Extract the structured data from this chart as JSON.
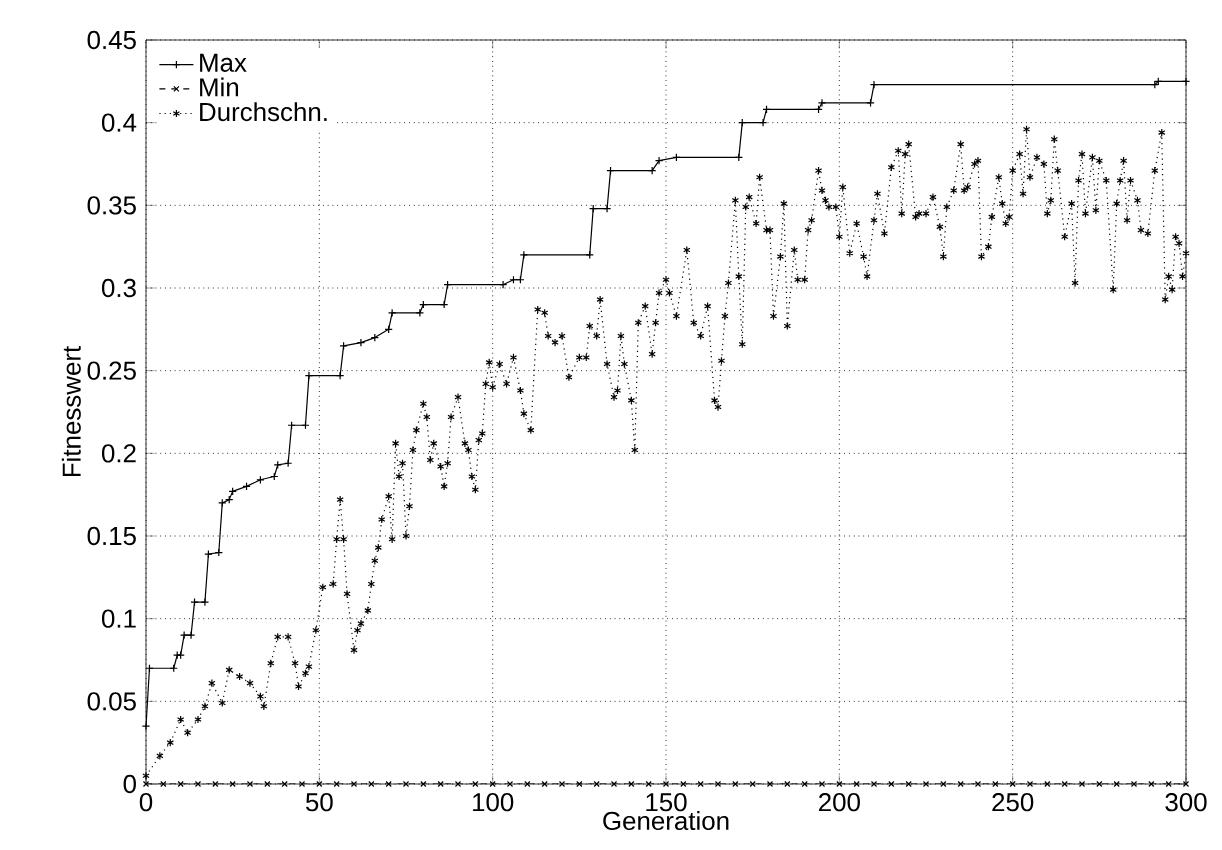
{
  "chart_data": {
    "type": "line",
    "xlabel": "Generation",
    "ylabel": "Fitnesswert",
    "xlim": [
      0,
      300
    ],
    "ylim": [
      0,
      0.45
    ],
    "xticks": [
      0,
      50,
      100,
      150,
      200,
      250,
      300
    ],
    "yticks": [
      0,
      0.05,
      0.1,
      0.15,
      0.2,
      0.25,
      0.3,
      0.35,
      0.4,
      0.45
    ],
    "grid": true,
    "legend": "top left",
    "series": [
      {
        "name": "Max",
        "color": "#000000",
        "marker": "cross",
        "line_style": "solid",
        "x": [
          0,
          1,
          8,
          9,
          10,
          11,
          13,
          14,
          17,
          18,
          21,
          22,
          24,
          25,
          29,
          33,
          37,
          38,
          41,
          42,
          46,
          47,
          56,
          57,
          62,
          66,
          70,
          71,
          79,
          80,
          86,
          87,
          103,
          106,
          108,
          109,
          128,
          129,
          133,
          134,
          146,
          148,
          153,
          171,
          172,
          178,
          179,
          194,
          195,
          209,
          210,
          291,
          292,
          300
        ],
        "values": [
          0.035,
          0.07,
          0.07,
          0.078,
          0.078,
          0.09,
          0.09,
          0.11,
          0.11,
          0.139,
          0.14,
          0.17,
          0.172,
          0.177,
          0.18,
          0.184,
          0.186,
          0.193,
          0.194,
          0.217,
          0.217,
          0.247,
          0.247,
          0.265,
          0.267,
          0.27,
          0.275,
          0.285,
          0.285,
          0.29,
          0.29,
          0.302,
          0.302,
          0.305,
          0.305,
          0.32,
          0.32,
          0.348,
          0.348,
          0.371,
          0.371,
          0.377,
          0.379,
          0.379,
          0.4,
          0.4,
          0.408,
          0.408,
          0.412,
          0.412,
          0.423,
          0.423,
          0.425,
          0.425
        ]
      },
      {
        "name": "Min",
        "color": "#000000",
        "marker": "cross",
        "line_style": "dashed",
        "x": [
          0,
          5,
          10,
          15,
          20,
          25,
          30,
          35,
          40,
          45,
          50,
          55,
          60,
          65,
          70,
          75,
          80,
          85,
          90,
          95,
          100,
          105,
          110,
          115,
          120,
          125,
          130,
          135,
          140,
          145,
          150,
          155,
          160,
          165,
          170,
          175,
          180,
          185,
          190,
          195,
          200,
          205,
          210,
          215,
          220,
          225,
          230,
          235,
          240,
          245,
          250,
          255,
          260,
          265,
          270,
          275,
          280,
          285,
          290,
          295,
          300
        ],
        "values": [
          0,
          0,
          0,
          0,
          0,
          0,
          0,
          0,
          0,
          0,
          0,
          0,
          0,
          0,
          0,
          0,
          0,
          0,
          0,
          0,
          0,
          0,
          0,
          0,
          0,
          0,
          0,
          0,
          0,
          0,
          0,
          0,
          0,
          0,
          0,
          0,
          0,
          0,
          0,
          0,
          0,
          0,
          0,
          0,
          0,
          0,
          0,
          0,
          0,
          0,
          0,
          0,
          0,
          0,
          0,
          0,
          0,
          0,
          0,
          0,
          0
        ]
      },
      {
        "name": "Durchschn.",
        "color": "#000000",
        "marker": "cross",
        "line_style": "dotted",
        "x": [
          0,
          4,
          7,
          10,
          12,
          15,
          17,
          19,
          22,
          24,
          27,
          30,
          33,
          34,
          36,
          38,
          41,
          43,
          44,
          46,
          47,
          49,
          51,
          54,
          55,
          56,
          57,
          58,
          60,
          61,
          62,
          64,
          65,
          66,
          67,
          68,
          70,
          71,
          72,
          73,
          74,
          75,
          76,
          77,
          78,
          80,
          81,
          82,
          83,
          85,
          86,
          87,
          88,
          90,
          92,
          93,
          94,
          95,
          96,
          97,
          98,
          99,
          100,
          102,
          104,
          106,
          108,
          109,
          111,
          113,
          115,
          116,
          118,
          120,
          122,
          125,
          127,
          128,
          130,
          131,
          133,
          135,
          136,
          137,
          138,
          140,
          141,
          142,
          144,
          146,
          147,
          148,
          150,
          151,
          153,
          156,
          158,
          160,
          162,
          164,
          165,
          166,
          167,
          168,
          170,
          171,
          172,
          173,
          174,
          176,
          177,
          179,
          180,
          181,
          183,
          184,
          185,
          187,
          188,
          190,
          191,
          192,
          194,
          195,
          196,
          197,
          199,
          200,
          201,
          203,
          205,
          207,
          208,
          210,
          211,
          213,
          215,
          217,
          218,
          219,
          220,
          222,
          223,
          225,
          227,
          229,
          230,
          231,
          233,
          235,
          236,
          237,
          239,
          240,
          241,
          243,
          244,
          246,
          247,
          248,
          249,
          250,
          252,
          253,
          254,
          255,
          257,
          259,
          260,
          261,
          262,
          263,
          265,
          267,
          268,
          269,
          270,
          271,
          273,
          274,
          275,
          277,
          279,
          280,
          281,
          282,
          283,
          284,
          286,
          287,
          289,
          291,
          293,
          294,
          295,
          296,
          297,
          298,
          299,
          300
        ],
        "values": [
          0.005,
          0.017,
          0.025,
          0.039,
          0.031,
          0.039,
          0.047,
          0.061,
          0.049,
          0.069,
          0.065,
          0.061,
          0.053,
          0.047,
          0.073,
          0.089,
          0.089,
          0.073,
          0.059,
          0.067,
          0.071,
          0.093,
          0.119,
          0.121,
          0.148,
          0.172,
          0.148,
          0.115,
          0.081,
          0.093,
          0.097,
          0.105,
          0.121,
          0.135,
          0.143,
          0.16,
          0.174,
          0.148,
          0.206,
          0.186,
          0.194,
          0.15,
          0.168,
          0.202,
          0.214,
          0.23,
          0.222,
          0.196,
          0.206,
          0.192,
          0.18,
          0.194,
          0.222,
          0.234,
          0.206,
          0.202,
          0.186,
          0.178,
          0.208,
          0.212,
          0.242,
          0.255,
          0.24,
          0.254,
          0.242,
          0.258,
          0.238,
          0.224,
          0.214,
          0.287,
          0.285,
          0.271,
          0.267,
          0.271,
          0.246,
          0.258,
          0.258,
          0.277,
          0.271,
          0.293,
          0.254,
          0.234,
          0.238,
          0.271,
          0.254,
          0.232,
          0.202,
          0.279,
          0.289,
          0.26,
          0.279,
          0.297,
          0.305,
          0.297,
          0.283,
          0.323,
          0.279,
          0.271,
          0.289,
          0.232,
          0.228,
          0.256,
          0.283,
          0.303,
          0.353,
          0.307,
          0.266,
          0.349,
          0.355,
          0.339,
          0.367,
          0.335,
          0.335,
          0.283,
          0.319,
          0.351,
          0.277,
          0.323,
          0.305,
          0.305,
          0.335,
          0.341,
          0.371,
          0.359,
          0.353,
          0.349,
          0.349,
          0.331,
          0.361,
          0.321,
          0.339,
          0.319,
          0.307,
          0.341,
          0.357,
          0.333,
          0.373,
          0.383,
          0.345,
          0.381,
          0.387,
          0.343,
          0.345,
          0.345,
          0.355,
          0.337,
          0.319,
          0.349,
          0.359,
          0.387,
          0.359,
          0.361,
          0.375,
          0.377,
          0.319,
          0.325,
          0.343,
          0.367,
          0.351,
          0.339,
          0.343,
          0.371,
          0.381,
          0.357,
          0.396,
          0.367,
          0.379,
          0.375,
          0.345,
          0.353,
          0.39,
          0.371,
          0.331,
          0.351,
          0.303,
          0.365,
          0.381,
          0.345,
          0.379,
          0.347,
          0.377,
          0.365,
          0.299,
          0.351,
          0.365,
          0.377,
          0.341,
          0.365,
          0.353,
          0.335,
          0.333,
          0.371,
          0.394,
          0.293,
          0.307,
          0.299,
          0.331,
          0.327,
          0.307,
          0.321
        ]
      }
    ]
  }
}
